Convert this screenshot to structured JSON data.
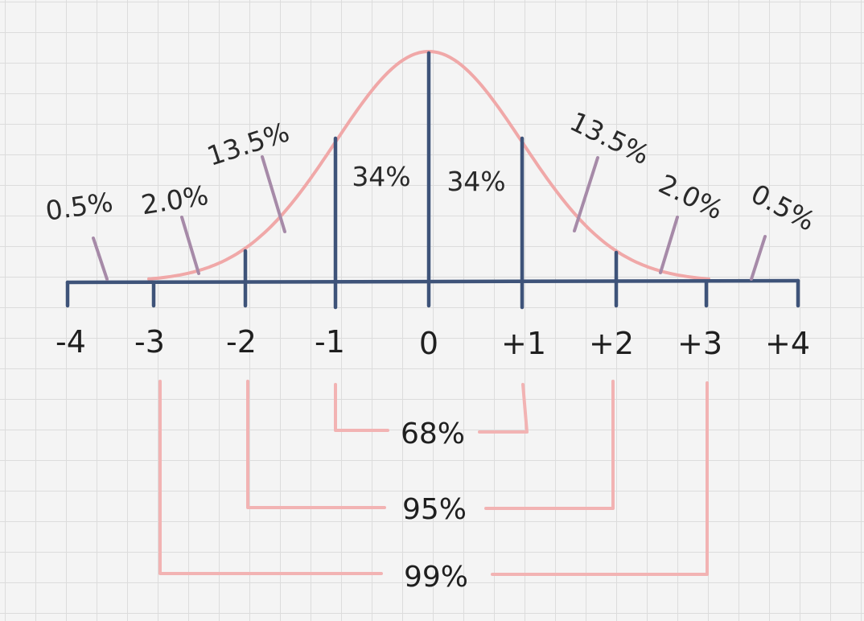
{
  "diagram": {
    "axis_ticks": [
      "-4",
      "-3",
      "-2",
      "-1",
      "0",
      "+1",
      "+2",
      "+3",
      "+4"
    ],
    "area_labels": [
      {
        "id": "left-tail",
        "text": "0.5%"
      },
      {
        "id": "left-2-3",
        "text": "2.0%"
      },
      {
        "id": "left-1-2",
        "text": "13.5%"
      },
      {
        "id": "left-0-1",
        "text": "34%"
      },
      {
        "id": "right-0-1",
        "text": "34%"
      },
      {
        "id": "right-1-2",
        "text": "13.5%"
      },
      {
        "id": "right-2-3",
        "text": "2.0%"
      },
      {
        "id": "right-tail",
        "text": "0.5%"
      }
    ],
    "ranges": [
      {
        "span": "-1 to +1",
        "text": "68%"
      },
      {
        "span": "-2 to +2",
        "text": "95%"
      },
      {
        "span": "-3 to +3",
        "text": "99%"
      }
    ],
    "colors": {
      "axis": "#3e5379",
      "curve": "#f0a8a8",
      "leader": "#a68aa8",
      "bracket": "#f2b3b3",
      "text": "#1f1f1f"
    }
  }
}
